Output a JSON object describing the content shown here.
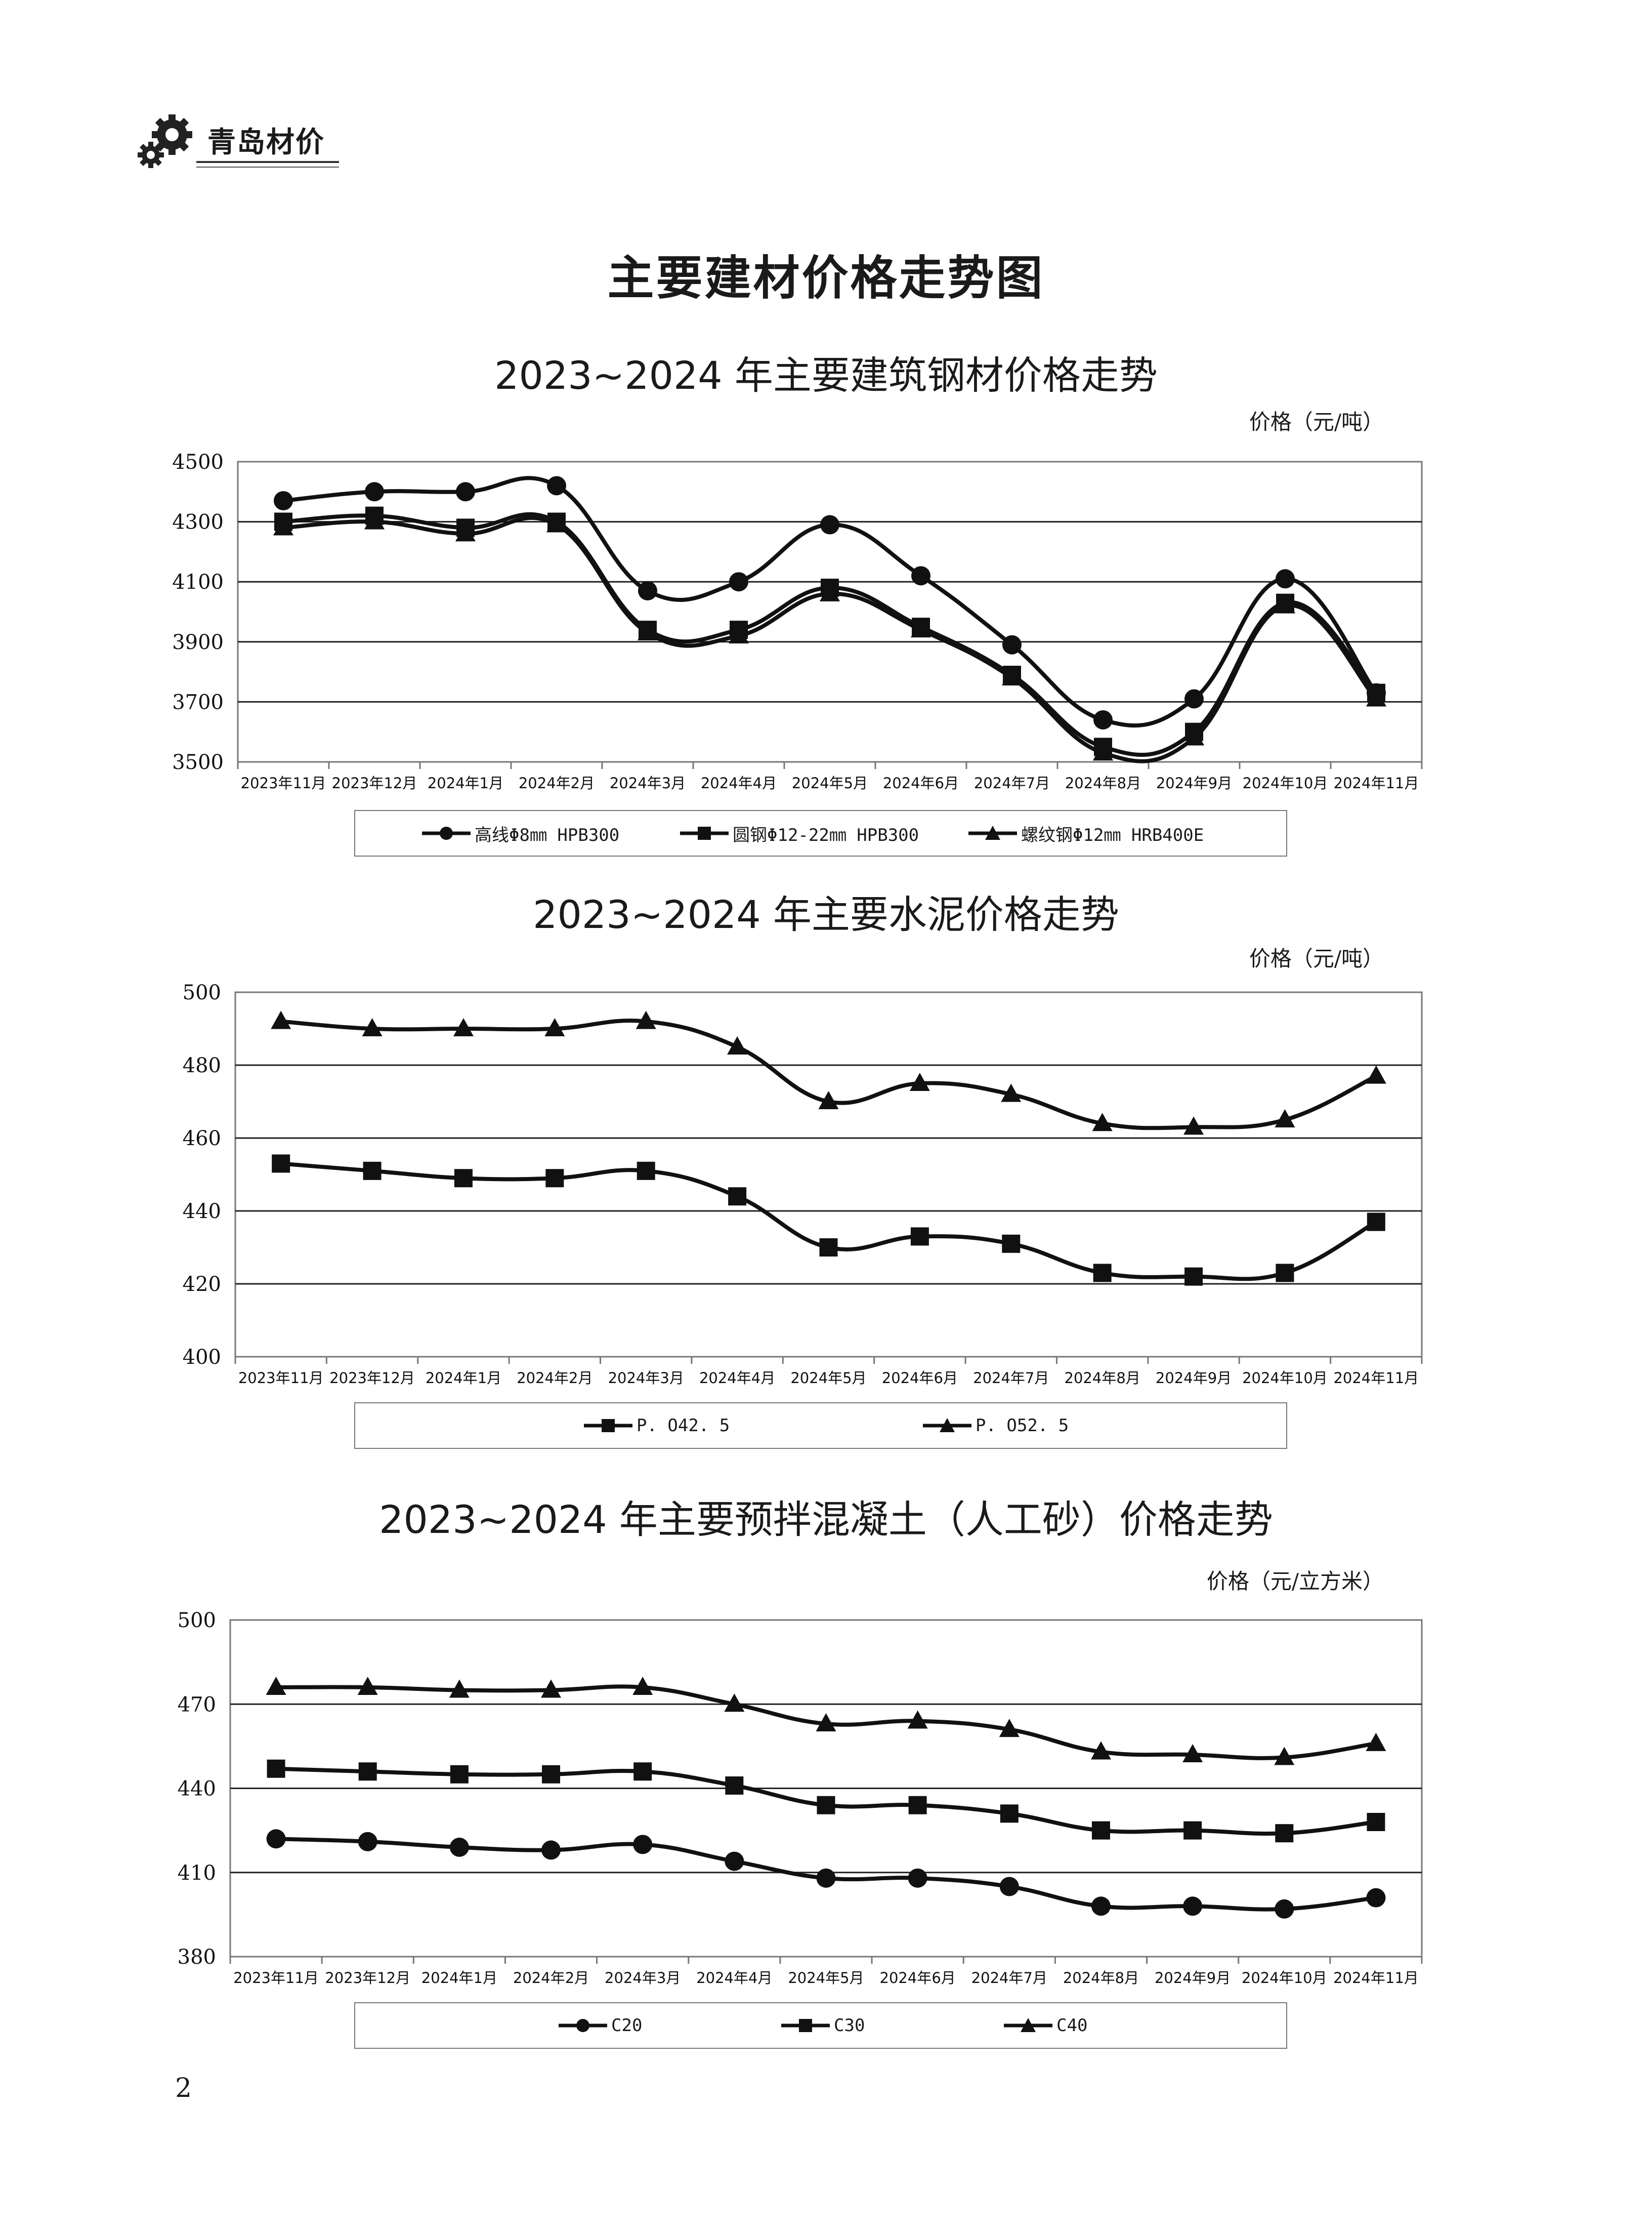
{
  "header": {
    "title": "青岛材价",
    "icon": "gear-icon"
  },
  "page_title": "主要建材价格走势图",
  "page_number": "2",
  "charts": [
    {
      "title": "2023~2024 年主要建筑钢材价格走势",
      "unit": "价格（元/吨）",
      "legend": [
        "高线Φ8㎜ HPB300",
        "圆钢Φ12-22㎜ HPB300",
        "螺纹钢Φ12㎜ HRB400E"
      ]
    },
    {
      "title": "2023~2024 年主要水泥价格走势",
      "unit": "价格（元/吨）",
      "legend": [
        "P. O42. 5",
        "P. O52. 5"
      ]
    },
    {
      "title": "2023~2024 年主要预拌混凝土（人工砂）价格走势",
      "unit": "价格（元/立方米）",
      "legend": [
        "C20",
        "C30",
        "C40"
      ]
    }
  ],
  "chart_data": [
    {
      "type": "line",
      "title": "2023~2024 年主要建筑钢材价格走势",
      "ylabel": "价格（元/吨）",
      "ylim": [
        3500,
        4500
      ],
      "yticks": [
        3500,
        3700,
        3900,
        4100,
        4300,
        4500
      ],
      "grid": true,
      "legend_position": "bottom",
      "categories": [
        "2023年11月",
        "2023年12月",
        "2024年1月",
        "2024年2月",
        "2024年3月",
        "2024年4月",
        "2024年5月",
        "2024年6月",
        "2024年7月",
        "2024年8月",
        "2024年9月",
        "2024年10月",
        "2024年11月"
      ],
      "series": [
        {
          "name": "高线Φ8㎜ HPB300",
          "marker": "circle",
          "values": [
            4370,
            4400,
            4400,
            4420,
            4070,
            4100,
            4290,
            4120,
            3890,
            3640,
            3710,
            4110,
            3730
          ]
        },
        {
          "name": "圆钢Φ12-22㎜ HPB300",
          "marker": "square",
          "values": [
            4300,
            4320,
            4280,
            4300,
            3940,
            3940,
            4080,
            3950,
            3790,
            3550,
            3600,
            4030,
            3730
          ]
        },
        {
          "name": "螺纹钢Φ12㎜ HRB400E",
          "marker": "triangle",
          "values": [
            4280,
            4300,
            4260,
            4290,
            3930,
            3920,
            4060,
            3940,
            3780,
            3530,
            3580,
            4020,
            3710
          ]
        }
      ]
    },
    {
      "type": "line",
      "title": "2023~2024 年主要水泥价格走势",
      "ylabel": "价格（元/吨）",
      "ylim": [
        400,
        500
      ],
      "yticks": [
        400,
        420,
        440,
        460,
        480,
        500
      ],
      "grid": true,
      "legend_position": "bottom",
      "categories": [
        "2023年11月",
        "2023年12月",
        "2024年1月",
        "2024年2月",
        "2024年3月",
        "2024年4月",
        "2024年5月",
        "2024年6月",
        "2024年7月",
        "2024年8月",
        "2024年9月",
        "2024年10月",
        "2024年11月"
      ],
      "series": [
        {
          "name": "P. O42. 5",
          "marker": "square",
          "values": [
            453,
            451,
            449,
            449,
            451,
            444,
            430,
            433,
            431,
            423,
            422,
            423,
            437
          ]
        },
        {
          "name": "P. O52. 5",
          "marker": "triangle",
          "values": [
            492,
            490,
            490,
            490,
            492,
            485,
            470,
            475,
            472,
            464,
            463,
            465,
            477
          ]
        }
      ]
    },
    {
      "type": "line",
      "title": "2023~2024 年主要预拌混凝土（人工砂）价格走势",
      "ylabel": "价格（元/立方米）",
      "ylim": [
        380,
        500
      ],
      "yticks": [
        380,
        410,
        440,
        470,
        500
      ],
      "grid": true,
      "legend_position": "bottom",
      "categories": [
        "2023年11月",
        "2023年12月",
        "2024年1月",
        "2024年2月",
        "2024年3月",
        "2024年4月",
        "2024年5月",
        "2024年6月",
        "2024年7月",
        "2024年8月",
        "2024年9月",
        "2024年10月",
        "2024年11月"
      ],
      "series": [
        {
          "name": "C20",
          "marker": "circle",
          "values": [
            422,
            421,
            419,
            418,
            420,
            414,
            408,
            408,
            405,
            398,
            398,
            397,
            401
          ]
        },
        {
          "name": "C30",
          "marker": "square",
          "values": [
            447,
            446,
            445,
            445,
            446,
            441,
            434,
            434,
            431,
            425,
            425,
            424,
            428
          ]
        },
        {
          "name": "C40",
          "marker": "triangle",
          "values": [
            476,
            476,
            475,
            475,
            476,
            470,
            463,
            464,
            461,
            453,
            452,
            451,
            456
          ]
        }
      ]
    }
  ]
}
